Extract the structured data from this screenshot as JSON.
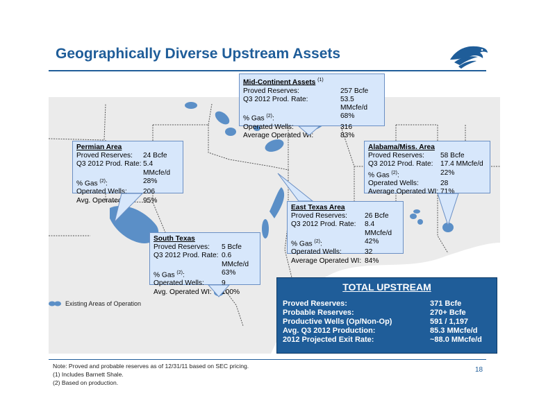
{
  "page": {
    "title": "Geographically Diverse Upstream Assets",
    "page_number": "18"
  },
  "legend": {
    "label": "Existing Areas of Operation"
  },
  "colors": {
    "accent": "#1f5d99",
    "callout_bg": "#d7e7fb",
    "operation_area": "#5b8fc7",
    "map_bg": "#ebebeb"
  },
  "mid_continent": {
    "title": "Mid-Continent Assets",
    "title_sup": "(1)",
    "rows": [
      {
        "k": "Proved Reserves:",
        "v": "257 Bcfe"
      },
      {
        "k": "Q3 2012 Prod. Rate:",
        "v": "53.5 MMcfe/d"
      },
      {
        "k": "% Gas",
        "sup": "(2)",
        "k2": ":",
        "v": "68%"
      },
      {
        "k": "Operated Wells:",
        "v": "316"
      },
      {
        "k": "Average Operated WI:",
        "v": "83%"
      }
    ]
  },
  "permian": {
    "title": "Permian Area",
    "rows": [
      {
        "k": "Proved Reserves:",
        "v": "24 Bcfe"
      },
      {
        "k": "Q3 2012 Prod. Rate:",
        "v": "5.4 MMcfe/d"
      },
      {
        "k": "% Gas",
        "sup": "(2)",
        "k2": ":",
        "v": "28%"
      },
      {
        "k": "Operated Wells:",
        "v": "206"
      },
      {
        "k": "Avg. Operated WI:",
        "v": "95%"
      }
    ]
  },
  "alabama": {
    "title": "Alabama/Miss. Area",
    "rows": [
      {
        "k": "Proved Reserves:",
        "v": "58 Bcfe"
      },
      {
        "k": "Q3 2012 Prod. Rate:",
        "v": "17.4 MMcfe/d"
      },
      {
        "k": "% Gas",
        "sup": "(2)",
        "k2": ":",
        "v": "22%"
      },
      {
        "k": "Operated Wells:",
        "v": "28"
      },
      {
        "k": "Average Operated WI:",
        "v": "71%"
      }
    ]
  },
  "east_texas": {
    "title": "East Texas Area",
    "rows": [
      {
        "k": "Proved Reserves:",
        "v": "26 Bcfe"
      },
      {
        "k": "Q3 2012 Prod. Rate:",
        "v": "8.4 MMcfe/d"
      },
      {
        "k": "% Gas",
        "sup": "(2)",
        "k2": ":",
        "v": "42%"
      },
      {
        "k": "Operated Wells:",
        "v": "32"
      },
      {
        "k": "Average Operated WI:",
        "v": "84%"
      }
    ]
  },
  "south_texas": {
    "title": "South Texas",
    "rows": [
      {
        "k": "Proved Reserves:",
        "v": "5 Bcfe"
      },
      {
        "k": "Q3 2012 Prod. Rate:",
        "v": "0.6 MMcfe/d"
      },
      {
        "k": "% Gas",
        "sup": "(2)",
        "k2": ":",
        "v": "63%"
      },
      {
        "k": "Operated Wells:",
        "v": "9"
      },
      {
        "k": "Avg. Operated WI:",
        "v": "100%"
      }
    ]
  },
  "total": {
    "title": "TOTAL  UPSTREAM",
    "rows": [
      {
        "k": "Proved Reserves:",
        "v": "371 Bcfe"
      },
      {
        "k": "Probable Reserves:",
        "v": "270+ Bcfe"
      },
      {
        "k": "Productive Wells (Op/Non-Op)",
        "v": "591 / 1,197"
      },
      {
        "k": "Avg. Q3 2012 Production:",
        "v": "85.3 MMcfe/d"
      },
      {
        "k": "2012 Projected Exit Rate:",
        "v": "~88.0 MMcfe/d"
      }
    ]
  },
  "notes": [
    "Note:  Proved and probable reserves as of 12/31/11 based on SEC pricing.",
    "(1)   Includes Barnett Shale.",
    "(2)   Based on production."
  ]
}
